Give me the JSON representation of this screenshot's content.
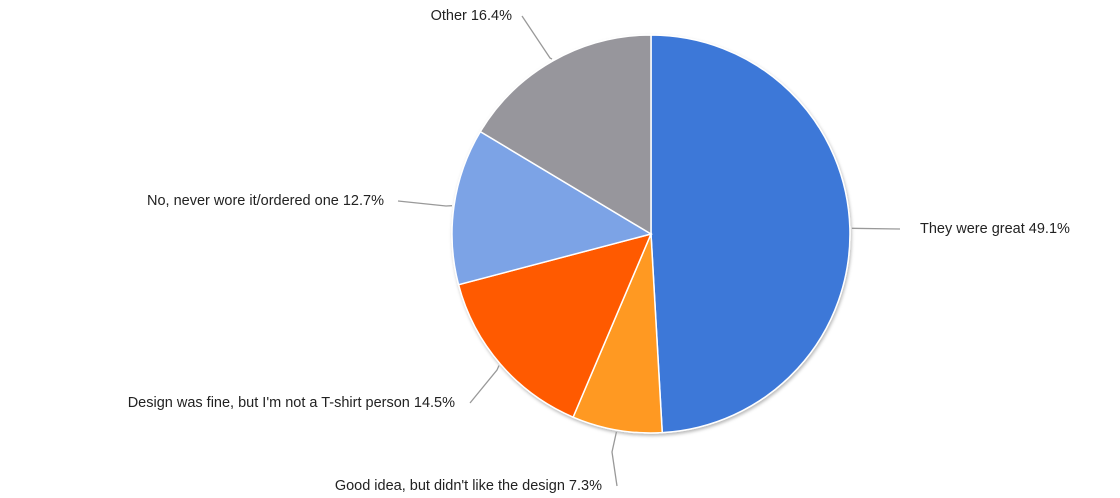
{
  "chart_data": {
    "type": "pie",
    "title": "",
    "slices": [
      {
        "label": "They were great",
        "percent": 49.1,
        "display": "49.1%",
        "color": "#3c78d8"
      },
      {
        "label": "Good idea, but didn't like the design",
        "percent": 7.3,
        "display": "7.3%",
        "color": "#ff9922"
      },
      {
        "label": "Design was fine, but I'm not a T-shirt person",
        "percent": 14.5,
        "display": "14.5%",
        "color": "#ff5a00"
      },
      {
        "label": "No, never wore it/ordered one",
        "percent": 12.7,
        "display": "12.7%",
        "color": "#7ba3e6"
      },
      {
        "label": "Other",
        "percent": 16.4,
        "display": "16.4%",
        "color": "#97969c"
      }
    ],
    "start": "12 o'clock",
    "direction": "clockwise",
    "legend": "none",
    "labels": "outside with leader lines"
  }
}
